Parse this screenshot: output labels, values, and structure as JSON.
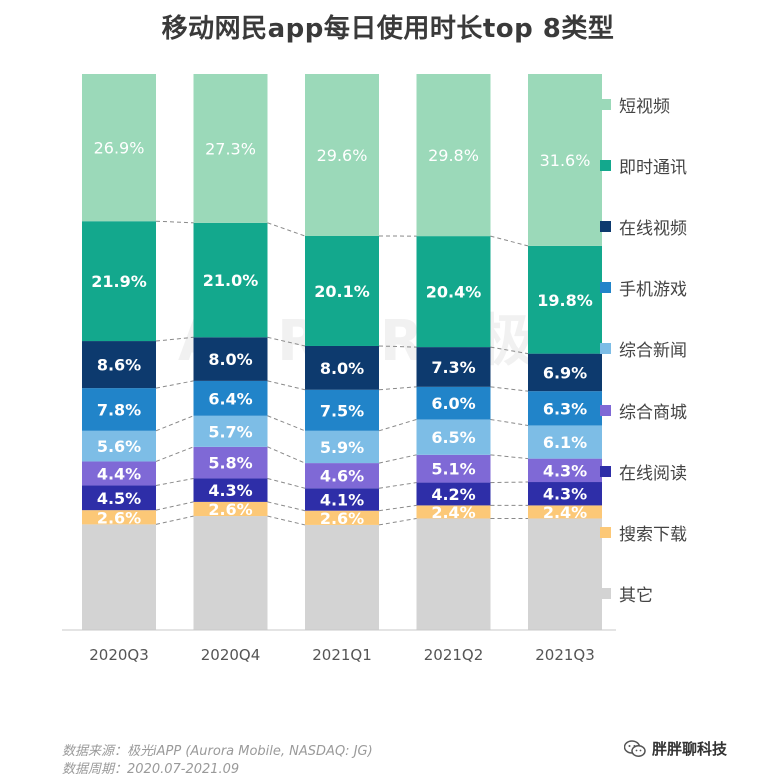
{
  "chart_data": {
    "type": "bar",
    "stacked": true,
    "title": "移动网民app每日使用时长top 8类型",
    "categories": [
      "2020Q3",
      "2020Q4",
      "2021Q1",
      "2021Q2",
      "2021Q3"
    ],
    "ylim": [
      0,
      100
    ],
    "legend_position": "right",
    "series": [
      {
        "name": "其它",
        "color": "#d3d3d3",
        "values": [
          19.3,
          20.9,
          19.2,
          20.5,
          20.5
        ],
        "labels": [
          "",
          "",
          "",
          "",
          ""
        ]
      },
      {
        "name": "搜索下载",
        "color": "#fcc877",
        "values": [
          2.6,
          2.6,
          2.6,
          2.4,
          2.4
        ],
        "labels": [
          "2.6%",
          "2.6%",
          "2.6%",
          "2.4%",
          "2.4%"
        ]
      },
      {
        "name": "在线阅读",
        "color": "#2e2ea8",
        "values": [
          4.5,
          4.3,
          4.1,
          4.2,
          4.3
        ],
        "labels": [
          "4.5%",
          "4.3%",
          "4.1%",
          "4.2%",
          "4.3%"
        ]
      },
      {
        "name": "综合商城",
        "color": "#7f69d6",
        "values": [
          4.4,
          5.8,
          4.6,
          5.1,
          4.3
        ],
        "labels": [
          "4.4%",
          "5.8%",
          "4.6%",
          "5.1%",
          "4.3%"
        ]
      },
      {
        "name": "综合新闻",
        "color": "#7dbde6",
        "values": [
          5.6,
          5.7,
          5.9,
          6.5,
          6.1
        ],
        "labels": [
          "5.6%",
          "5.7%",
          "5.9%",
          "6.5%",
          "6.1%"
        ]
      },
      {
        "name": "手机游戏",
        "color": "#2184c9",
        "values": [
          7.8,
          6.4,
          7.5,
          6.0,
          6.3
        ],
        "labels": [
          "7.8%",
          "6.4%",
          "7.5%",
          "6.0%",
          "6.3%"
        ]
      },
      {
        "name": "在线视频",
        "color": "#0d3a6e",
        "values": [
          8.6,
          8.0,
          8.0,
          7.3,
          6.9
        ],
        "labels": [
          "8.6%",
          "8.0%",
          "8.0%",
          "7.3%",
          "6.9%"
        ]
      },
      {
        "name": "即时通讯",
        "color": "#13a88d",
        "values": [
          21.9,
          21.0,
          20.1,
          20.4,
          19.8
        ],
        "labels": [
          "21.9%",
          "21.0%",
          "20.1%",
          "20.4%",
          "19.8%"
        ]
      },
      {
        "name": "短视频",
        "color": "#9bd9b9",
        "values": [
          26.9,
          27.3,
          29.6,
          29.8,
          31.6
        ],
        "labels": [
          "26.9%",
          "27.3%",
          "29.6%",
          "29.8%",
          "31.6%"
        ]
      }
    ]
  },
  "legend_order": [
    "短视频",
    "即时通讯",
    "在线视频",
    "手机游戏",
    "综合新闻",
    "综合商城",
    "在线阅读",
    "搜索下载",
    "其它"
  ],
  "watermark": "AURORA极光",
  "source_line1": "数据来源：极光iAPP (Aurora Mobile, NASDAQ: JG)",
  "source_line2": "数据周期：2020.07-2021.09",
  "wechat_label": "胖胖聊科技"
}
